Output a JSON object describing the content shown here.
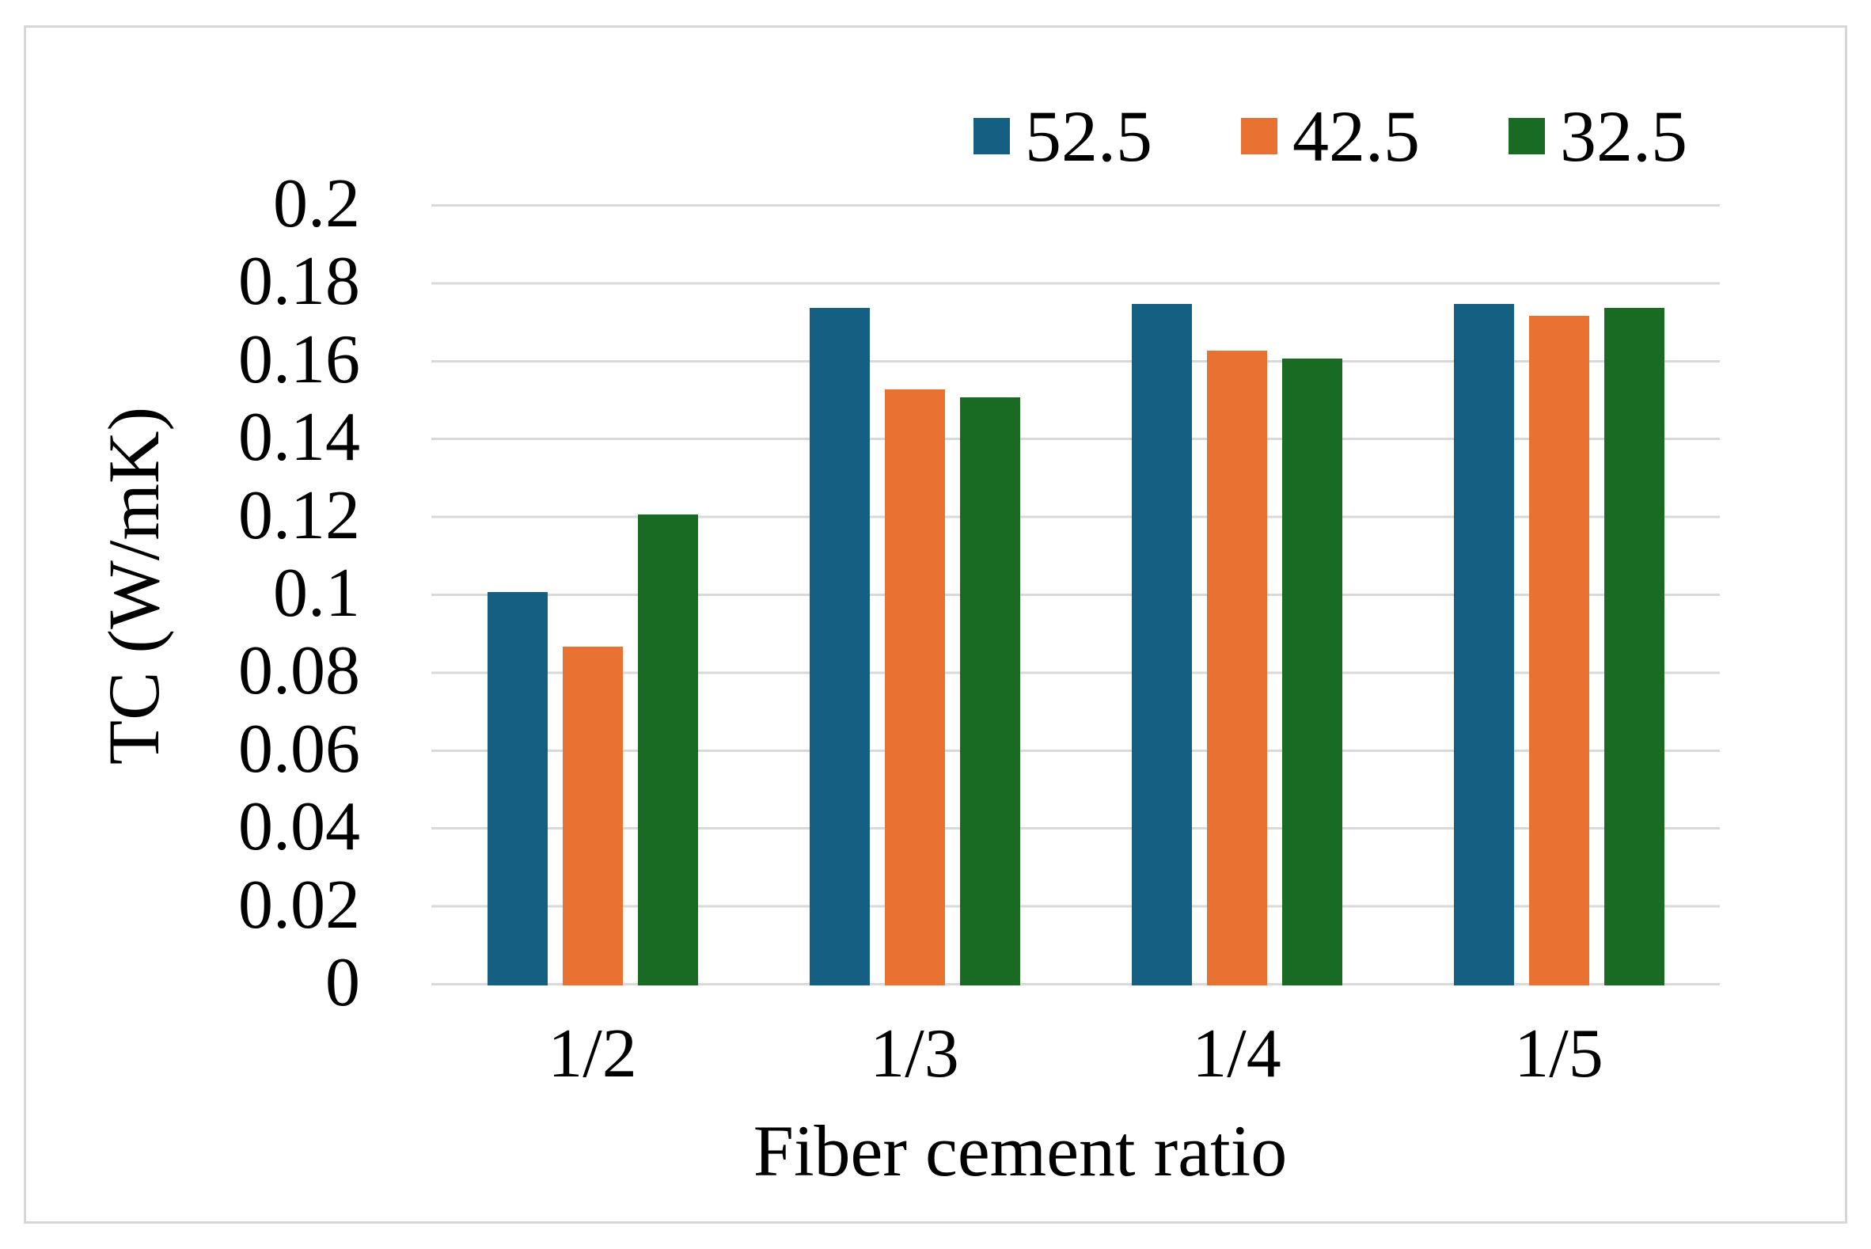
{
  "chart_data": {
    "type": "bar",
    "categories": [
      "1/2",
      "1/3",
      "1/4",
      "1/5"
    ],
    "series": [
      {
        "name": "52.5",
        "color": "#156082",
        "values": [
          0.101,
          0.174,
          0.175,
          0.175
        ]
      },
      {
        "name": "42.5",
        "color": "#E97132",
        "values": [
          0.087,
          0.153,
          0.163,
          0.172
        ]
      },
      {
        "name": "32.5",
        "color": "#196B24",
        "values": [
          0.121,
          0.151,
          0.161,
          0.174
        ]
      }
    ],
    "title": "",
    "xlabel": "Fiber cement ratio",
    "ylabel": "TC (W/mK)",
    "ylim": [
      0,
      0.2
    ],
    "ytick_step": 0.02,
    "yticks": [
      "0.2",
      "0.18",
      "0.16",
      "0.14",
      "0.12",
      "0.1",
      "0.08",
      "0.06",
      "0.04",
      "0.02",
      "0"
    ],
    "grid": "horizontal",
    "gridline_color": "#D9D9D9",
    "frame_color": "#D7D7D7",
    "legend_position": "top-right"
  }
}
